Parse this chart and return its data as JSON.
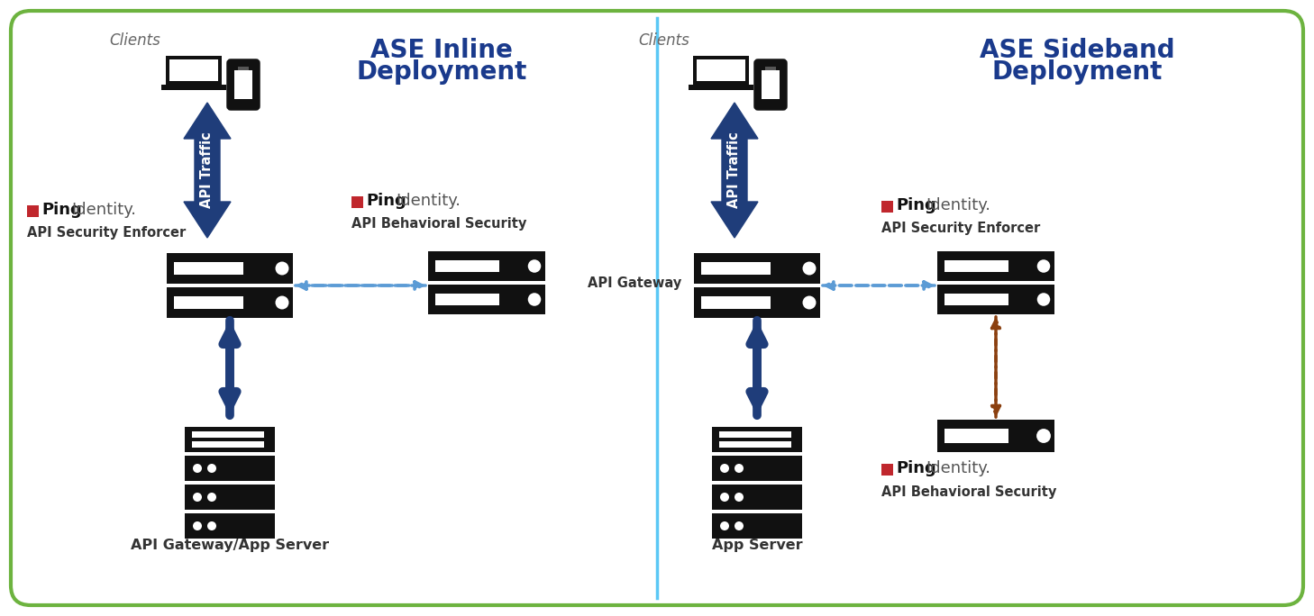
{
  "bg_color": "#ffffff",
  "border_color": "#6db33f",
  "divider_color": "#5bc8f5",
  "dark_blue": "#1f3d7a",
  "dashed_blue": "#5b9bd5",
  "dashed_brown": "#8b4010",
  "ping_red": "#c0272d",
  "title_blue": "#1a3a8c",
  "server_black": "#111111",
  "text_dark": "#333333",
  "text_clients": "#666666",
  "left_title_l1": "ASE Inline",
  "left_title_l2": "Deployment",
  "right_title_l1": "ASE Sideband",
  "right_title_l2": "Deployment",
  "label_clients": "Clients",
  "label_api_traffic": "API Traffic",
  "label_left_ase": "API Security Enforcer",
  "label_left_abs": "API Behavioral Security",
  "label_left_bottom": "API Gateway/App Server",
  "label_right_gw": "API Gateway",
  "label_right_ase": "API Security Enforcer",
  "label_right_abs": "API Behavioral Security",
  "label_right_bottom": "App Server"
}
